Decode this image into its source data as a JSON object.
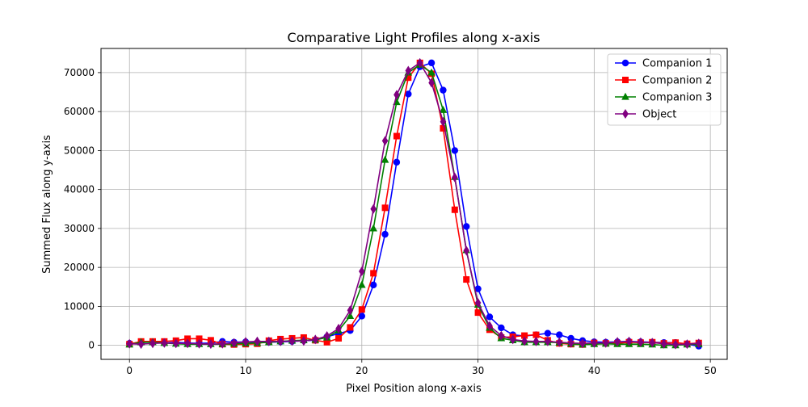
{
  "chart_data": {
    "type": "line",
    "title": "Comparative Light Profiles along x-axis",
    "xlabel": "Pixel Position along x-axis",
    "ylabel": "Summed Flux along y-axis",
    "xlim": [
      -2.45,
      51.45
    ],
    "ylim": [
      -3600,
      76200
    ],
    "xticks": [
      0,
      10,
      20,
      30,
      40,
      50
    ],
    "yticks": [
      0,
      10000,
      20000,
      30000,
      40000,
      50000,
      60000,
      70000
    ],
    "grid": true,
    "legend_position": "top-right",
    "x": [
      0,
      1,
      2,
      3,
      4,
      5,
      6,
      7,
      8,
      9,
      10,
      11,
      12,
      13,
      14,
      15,
      16,
      17,
      18,
      19,
      20,
      21,
      22,
      23,
      24,
      25,
      26,
      27,
      28,
      29,
      30,
      31,
      32,
      33,
      34,
      35,
      36,
      37,
      38,
      39,
      40,
      41,
      42,
      43,
      44,
      45,
      46,
      47,
      48,
      49
    ],
    "series": [
      {
        "name": "Companion 1",
        "color": "#0000ff",
        "marker": "circle",
        "values": [
          500,
          700,
          900,
          600,
          800,
          600,
          500,
          600,
          1000,
          800,
          900,
          700,
          800,
          900,
          1000,
          1200,
          1300,
          2200,
          3000,
          3800,
          7500,
          15500,
          28500,
          47000,
          64500,
          71500,
          72500,
          65500,
          50000,
          30500,
          14500,
          7300,
          4500,
          2700,
          2400,
          2700,
          3100,
          2700,
          1800,
          1200,
          900,
          800,
          900,
          1000,
          900,
          800,
          700,
          700,
          300,
          -200
        ]
      },
      {
        "name": "Companion 2",
        "color": "#ff0000",
        "marker": "square",
        "values": [
          300,
          1000,
          1000,
          1000,
          1200,
          1700,
          1700,
          1300,
          300,
          200,
          300,
          400,
          1200,
          1600,
          1800,
          2000,
          1300,
          800,
          1800,
          4600,
          9200,
          18500,
          35300,
          53700,
          68700,
          72500,
          69700,
          55700,
          34800,
          16900,
          8400,
          4000,
          2000,
          2200,
          2500,
          2700,
          1300,
          500,
          300,
          200,
          600,
          500,
          500,
          800,
          700,
          800,
          500,
          700,
          400,
          600
        ]
      },
      {
        "name": "Companion 3",
        "color": "#008000",
        "marker": "triangle",
        "values": [
          200,
          800,
          800,
          600,
          400,
          300,
          300,
          300,
          300,
          400,
          500,
          600,
          800,
          1000,
          1200,
          1300,
          1400,
          2000,
          3800,
          7500,
          15500,
          30000,
          47600,
          62400,
          70000,
          72000,
          70000,
          60400,
          43200,
          24400,
          10400,
          4500,
          1800,
          1300,
          800,
          800,
          800,
          700,
          400,
          200,
          300,
          400,
          300,
          300,
          300,
          200,
          0,
          0,
          200,
          300
        ]
      },
      {
        "name": "Object",
        "color": "#800080",
        "marker": "diamond",
        "values": [
          400,
          300,
          500,
          600,
          500,
          500,
          400,
          300,
          400,
          600,
          900,
          1000,
          1000,
          1000,
          1100,
          1100,
          1500,
          2400,
          4300,
          9000,
          19000,
          35000,
          52500,
          64300,
          70500,
          72500,
          67400,
          57400,
          43100,
          24300,
          10900,
          5000,
          2500,
          1500,
          1100,
          1000,
          1000,
          800,
          600,
          500,
          600,
          600,
          900,
          1000,
          800,
          700,
          400,
          200,
          300,
          500
        ]
      }
    ]
  }
}
